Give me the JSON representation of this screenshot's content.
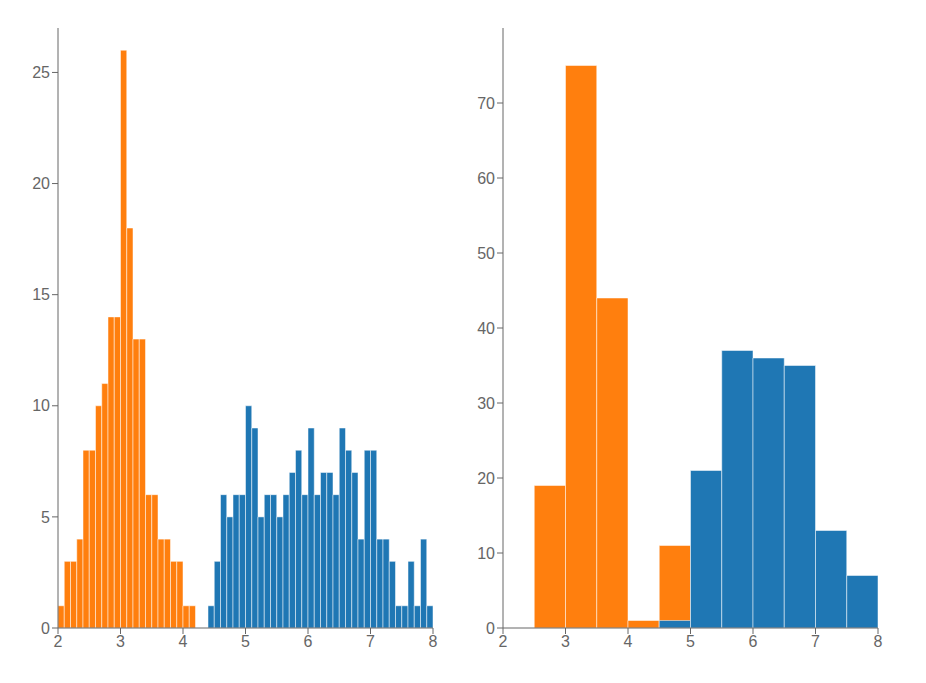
{
  "chart_data": [
    {
      "type": "histogram",
      "series": [
        {
          "color": "#ff7f0e",
          "bins": [
            2.0,
            2.1,
            2.2,
            2.3,
            2.4,
            2.5,
            2.6,
            2.7,
            2.8,
            2.9,
            3.0,
            3.1,
            3.2,
            3.3,
            3.4,
            3.5,
            3.6,
            3.7,
            3.8,
            3.9,
            4.0,
            4.1,
            4.2,
            4.3,
            4.4,
            4.5
          ],
          "values": [
            1,
            3,
            3,
            4,
            8,
            8,
            10,
            11,
            14,
            14,
            26,
            18,
            13,
            13,
            6,
            6,
            4,
            4,
            3,
            3,
            1,
            1,
            0,
            0,
            0
          ]
        },
        {
          "color": "#1f77b4",
          "bins": [
            4.4,
            4.5,
            4.6,
            4.7,
            4.8,
            4.9,
            5.0,
            5.1,
            5.2,
            5.3,
            5.4,
            5.5,
            5.6,
            5.7,
            5.8,
            5.9,
            6.0,
            6.1,
            6.2,
            6.3,
            6.4,
            6.5,
            6.6,
            6.7,
            6.8,
            6.9,
            7.0,
            7.1,
            7.2,
            7.3,
            7.4,
            7.5,
            7.6,
            7.7,
            7.8,
            7.9,
            8.0
          ],
          "values": [
            1,
            3,
            6,
            5,
            6,
            6,
            10,
            9,
            5,
            6,
            6,
            5,
            6,
            7,
            8,
            6,
            9,
            6,
            7,
            7,
            6,
            9,
            8,
            7,
            4,
            8,
            8,
            4,
            4,
            3,
            1,
            1,
            3,
            1,
            4,
            1
          ]
        }
      ],
      "xlim": [
        2,
        8
      ],
      "xticks": [
        2,
        3,
        4,
        5,
        6,
        7,
        8
      ],
      "ylim": [
        0,
        27
      ],
      "yticks": [
        0,
        5,
        10,
        15,
        20,
        25
      ],
      "grid": false
    },
    {
      "type": "histogram",
      "series": [
        {
          "color": "#ff7f0e",
          "bins": [
            2.5,
            3.0,
            3.5,
            4.0,
            4.5,
            5.0
          ],
          "values": [
            19,
            75,
            44,
            1,
            11
          ]
        },
        {
          "color": "#1f77b4",
          "bins": [
            4.5,
            5.0,
            5.5,
            6.0,
            6.5,
            7.0,
            7.5,
            8.0
          ],
          "values": [
            1,
            21,
            37,
            36,
            35,
            13,
            7
          ]
        }
      ],
      "xlim": [
        2,
        8
      ],
      "xticks": [
        2,
        3,
        4,
        5,
        6,
        7,
        8
      ],
      "ylim": [
        0,
        80
      ],
      "yticks": [
        0,
        10,
        20,
        30,
        40,
        50,
        60,
        70
      ],
      "grid": false
    }
  ]
}
